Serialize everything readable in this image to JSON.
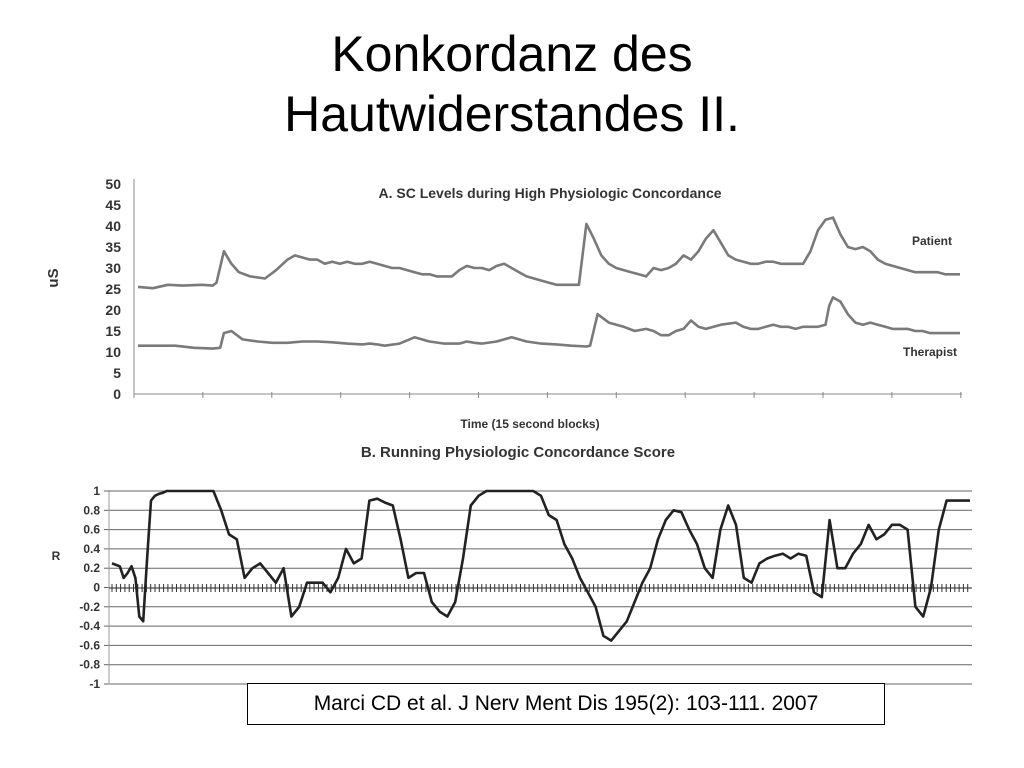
{
  "slide": {
    "title_line1": "Konkordanz des",
    "title_line2": "Hautwiderstandes II.",
    "citation": "Marci CD et al. J Nerv Ment Dis 195(2): 103-111. 2007"
  },
  "chart_data": [
    {
      "type": "line",
      "title": "A. SC Levels during High Physiologic Concordance",
      "xlabel": "Time (15 second blocks)",
      "ylabel": "uS",
      "ylim": [
        0,
        50
      ],
      "yticks": [
        "0",
        "5",
        "10",
        "15",
        "20",
        "25",
        "30",
        "35",
        "40",
        "45",
        "50"
      ],
      "grid": false,
      "line_color": "#7a7a7a",
      "series": [
        {
          "name": "Patient",
          "x": [
            0,
            4,
            8,
            12,
            17,
            20,
            21,
            23,
            25,
            27,
            30,
            34,
            37,
            40,
            42,
            44,
            46,
            48,
            50,
            52,
            54,
            56,
            58,
            60,
            62,
            64,
            66,
            68,
            70,
            72,
            74,
            76,
            78,
            80,
            82,
            84,
            86,
            88,
            90,
            92,
            94,
            96,
            98,
            100,
            102,
            104,
            106,
            108,
            110,
            112,
            114,
            116,
            118,
            120,
            122,
            124,
            126,
            128,
            130,
            132,
            134,
            136,
            138,
            140,
            142,
            144,
            146,
            148,
            150,
            152,
            154,
            156,
            158,
            160,
            162,
            164,
            166,
            168,
            170,
            172,
            174,
            176,
            178,
            180,
            182,
            184,
            186,
            188,
            190,
            192,
            194,
            196,
            198,
            200,
            202,
            204,
            206,
            208,
            210,
            212,
            214,
            216,
            218,
            220
          ],
          "values": [
            25.5,
            25.2,
            26,
            25.8,
            26,
            25.8,
            26.5,
            34,
            31,
            29,
            28,
            27.5,
            29.5,
            32,
            33,
            32.5,
            32,
            32,
            31,
            31.5,
            31,
            31.5,
            31,
            31,
            31.5,
            31,
            30.5,
            30,
            30,
            29.5,
            29,
            28.5,
            28.5,
            28,
            28,
            28,
            29.5,
            30.5,
            30,
            30,
            29.5,
            30.5,
            31,
            30,
            29,
            28,
            27.5,
            27,
            26.5,
            26,
            26,
            26,
            26,
            40.5,
            37,
            33,
            31,
            30,
            29.5,
            29,
            28.5,
            28,
            30,
            29.5,
            30,
            31,
            33,
            32,
            34,
            37,
            39,
            36,
            33,
            32,
            31.5,
            31,
            31,
            31.5,
            31.5,
            31,
            31,
            31,
            31,
            34,
            39,
            41.5,
            42,
            38,
            35,
            34.5,
            35,
            34,
            32,
            31,
            30.5,
            30,
            29.5,
            29,
            29,
            29,
            29,
            28.5,
            28.5,
            28.5
          ]
        },
        {
          "name": "Therapist",
          "x": [
            0,
            10,
            15,
            20,
            22,
            23,
            25,
            28,
            32,
            36,
            40,
            44,
            48,
            52,
            56,
            60,
            62,
            64,
            66,
            70,
            74,
            78,
            82,
            86,
            88,
            90,
            92,
            96,
            100,
            104,
            108,
            112,
            116,
            120,
            121,
            123,
            126,
            130,
            133,
            136,
            138,
            140,
            142,
            144,
            146,
            148,
            150,
            152,
            156,
            160,
            162,
            164,
            166,
            168,
            170,
            172,
            174,
            176,
            178,
            180,
            182,
            184,
            185,
            186,
            188,
            190,
            192,
            194,
            196,
            198,
            200,
            202,
            204,
            206,
            208,
            210,
            212,
            214,
            216,
            218,
            220
          ],
          "values": [
            11.5,
            11.5,
            11,
            10.8,
            11,
            14.5,
            15,
            13,
            12.5,
            12.2,
            12.2,
            12.5,
            12.5,
            12.3,
            12,
            11.8,
            12,
            11.8,
            11.5,
            12,
            13.5,
            12.5,
            12,
            12,
            12.5,
            12.2,
            12,
            12.5,
            13.5,
            12.5,
            12,
            11.8,
            11.5,
            11.3,
            11.5,
            19,
            17,
            16,
            15,
            15.5,
            15,
            14,
            14,
            15,
            15.5,
            17.5,
            16,
            15.5,
            16.5,
            17,
            16,
            15.5,
            15.5,
            16,
            16.5,
            16,
            16,
            15.5,
            16,
            16,
            16,
            16.5,
            21,
            23,
            22,
            19,
            17,
            16.5,
            17,
            16.5,
            16,
            15.5,
            15.5,
            15.5,
            15,
            15,
            14.5,
            14.5,
            14.5,
            14.5,
            14.5
          ]
        }
      ]
    },
    {
      "type": "line",
      "title": "B. Running Physiologic Concordance Score",
      "xlabel": "",
      "ylabel": "R",
      "ylim": [
        -1,
        1
      ],
      "yticks": [
        "-1",
        "-0.8",
        "-0.6",
        "-0.4",
        "-0.2",
        "0",
        "0.2",
        "0.4",
        "0.6",
        "0.8",
        "1"
      ],
      "grid": true,
      "line_color": "#222222",
      "series": [
        {
          "x": [
            0,
            2,
            3,
            4,
            5,
            6,
            7,
            8,
            9,
            10,
            11,
            12,
            13,
            14,
            15,
            16,
            18,
            20,
            22,
            24,
            26,
            28,
            30,
            32,
            34,
            36,
            38,
            40,
            42,
            44,
            46,
            48,
            50,
            52,
            54,
            56,
            58,
            60,
            62,
            64,
            66,
            68,
            70,
            72,
            74,
            76,
            78,
            80,
            82,
            84,
            86,
            88,
            90,
            92,
            94,
            96,
            98,
            100,
            102,
            104,
            106,
            108,
            110,
            112,
            114,
            116,
            118,
            120,
            122,
            124,
            126,
            128,
            130,
            132,
            134,
            136,
            138,
            140,
            142,
            144,
            146,
            148,
            150,
            152,
            154,
            156,
            158,
            160,
            162,
            164,
            166,
            168,
            170,
            172,
            174,
            176,
            178,
            180,
            182,
            184,
            186,
            188,
            190,
            192,
            194,
            196,
            198,
            200,
            202,
            204,
            206,
            208,
            210,
            212,
            214,
            216,
            218,
            220
          ],
          "values": [
            0.25,
            0.22,
            0.1,
            0.15,
            0.22,
            0.1,
            -0.3,
            -0.35,
            0.3,
            0.9,
            0.95,
            0.97,
            0.98,
            1,
            1,
            1,
            1,
            1,
            1,
            1,
            1,
            0.8,
            0.55,
            0.5,
            0.1,
            0.2,
            0.25,
            0.15,
            0.05,
            0.2,
            -0.3,
            -0.2,
            0.05,
            0.05,
            0.05,
            -0.05,
            0.1,
            0.4,
            0.25,
            0.3,
            0.9,
            0.92,
            0.88,
            0.85,
            0.5,
            0.1,
            0.15,
            0.15,
            -0.15,
            -0.25,
            -0.3,
            -0.15,
            0.3,
            0.85,
            0.95,
            1,
            1,
            1,
            1,
            1,
            1,
            1,
            0.95,
            0.75,
            0.7,
            0.45,
            0.3,
            0.1,
            -0.05,
            -0.2,
            -0.5,
            -0.55,
            -0.45,
            -0.35,
            -0.15,
            0.05,
            0.2,
            0.5,
            0.7,
            0.8,
            0.78,
            0.6,
            0.45,
            0.2,
            0.1,
            0.6,
            0.85,
            0.65,
            0.1,
            0.05,
            0.25,
            0.3,
            0.33,
            0.35,
            0.3,
            0.35,
            0.33,
            -0.05,
            -0.1,
            0.7,
            0.2,
            0.2,
            0.35,
            0.45,
            0.65,
            0.5,
            0.55,
            0.65,
            0.65,
            0.6,
            -0.2,
            -0.3,
            0.0,
            0.6,
            0.9,
            0.9,
            0.9,
            0.9
          ]
        }
      ]
    }
  ]
}
